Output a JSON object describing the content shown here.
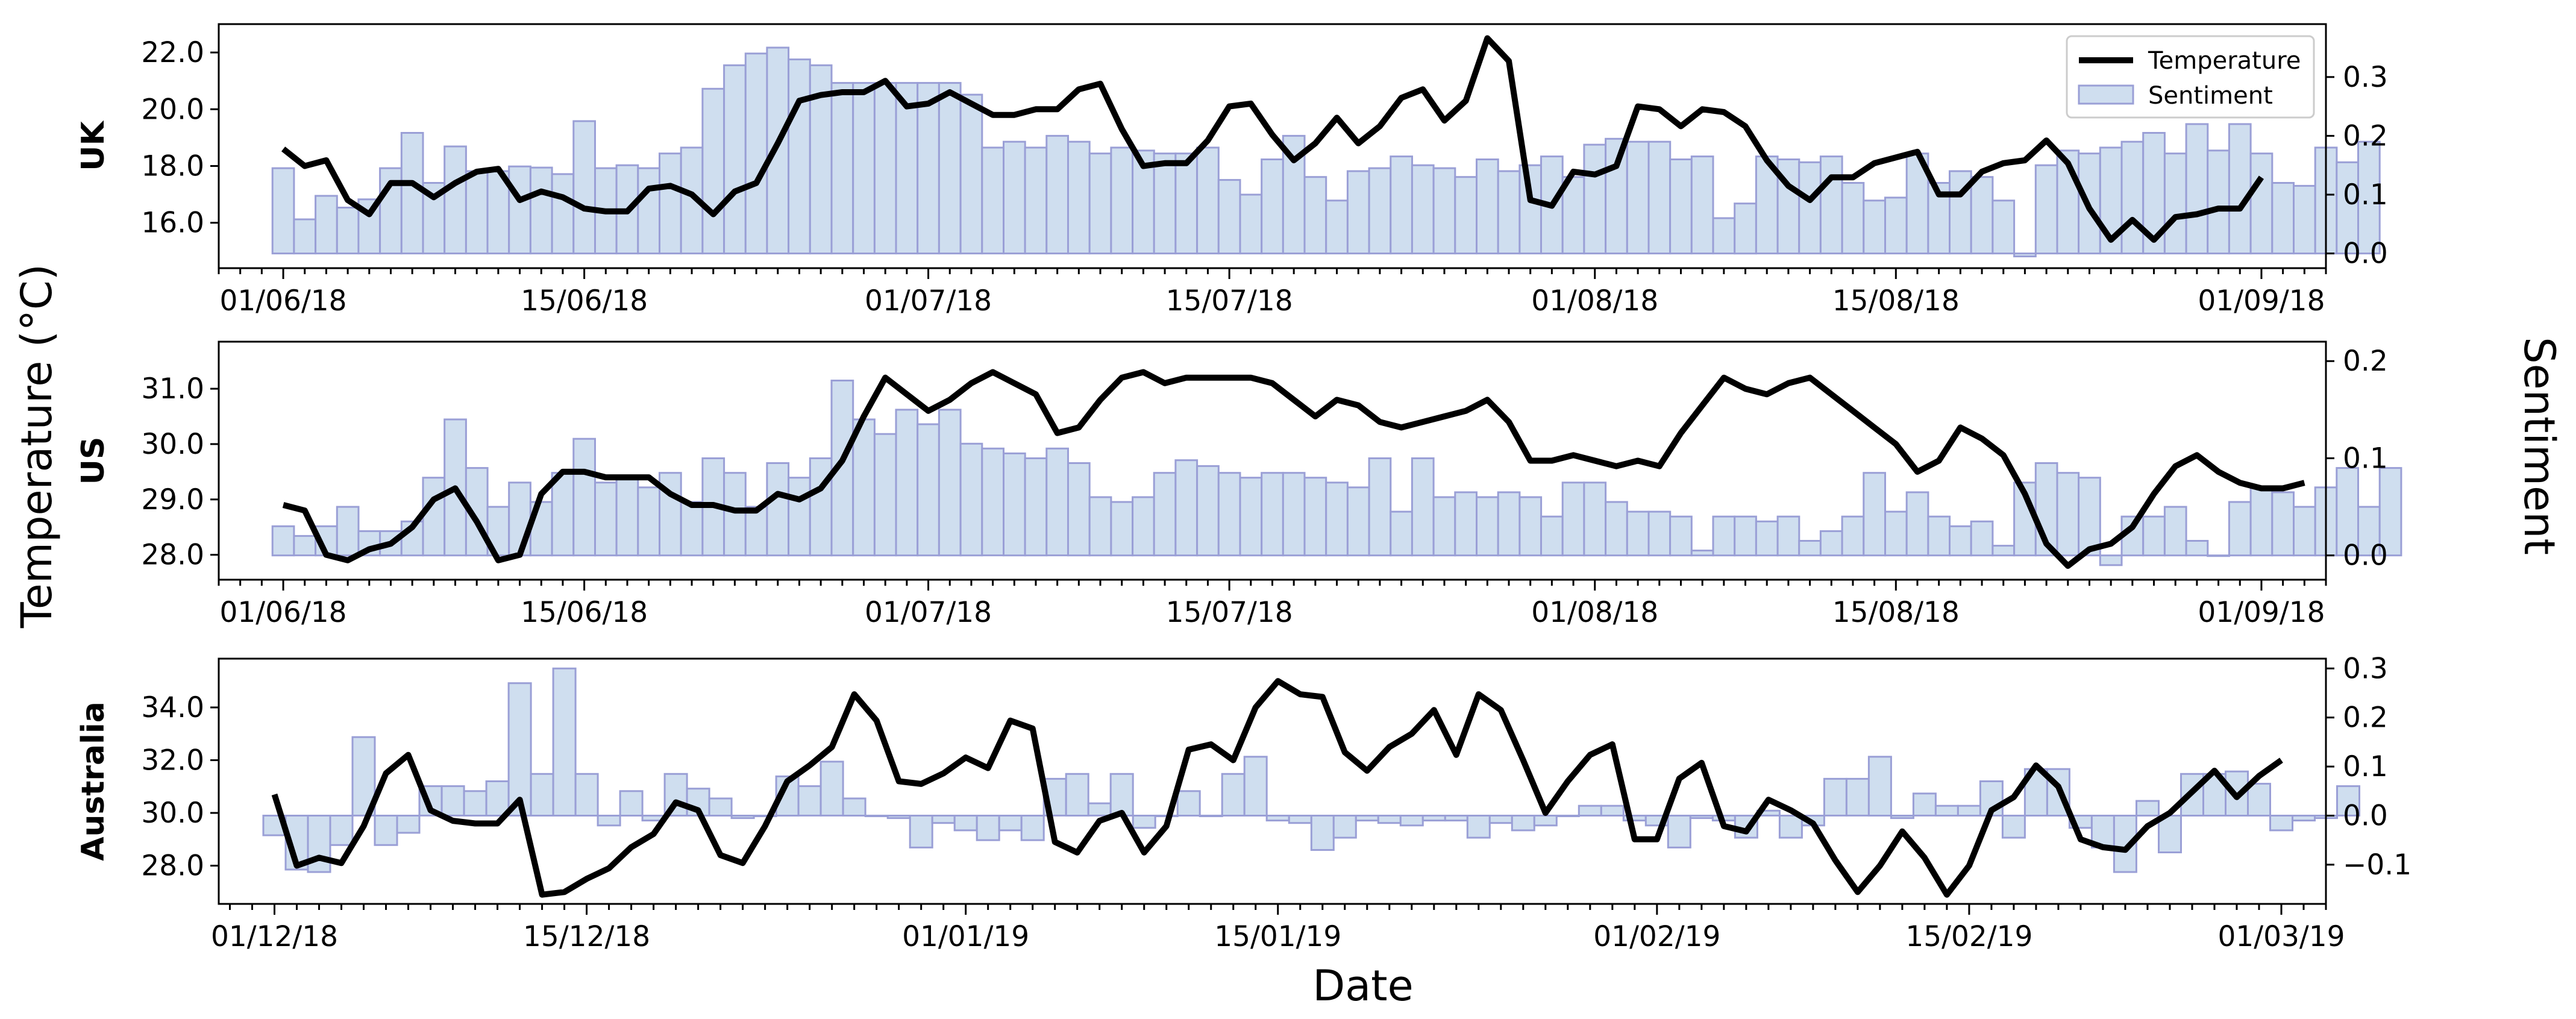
{
  "chart_data": {
    "type": "bar+line",
    "xlabel": "Date",
    "ylabel_left": "Temperature (°C)",
    "ylabel_right": "Sentiment",
    "legend": {
      "placement": "top-right",
      "entries": [
        "Temperature",
        "Sentiment"
      ]
    },
    "colors": {
      "line": "#000000",
      "bar_fill": "#cfdeef",
      "bar_edge": "#9a9fd6"
    },
    "panels": [
      {
        "label": "UK",
        "x_ticks": [
          "01/06/18",
          "15/06/18",
          "01/07/18",
          "15/07/18",
          "01/08/18",
          "15/08/18",
          "01/09/18"
        ],
        "x_range_days": [
          -3,
          95
        ],
        "y_left_ticks": [
          "16.0",
          "18.0",
          "20.0",
          "22.0"
        ],
        "y_left_range": [
          14.4,
          23.0
        ],
        "y_right_ticks": [
          "0.0",
          "0.1",
          "0.2",
          "0.3"
        ],
        "y_right_range": [
          -0.025,
          0.39
        ],
        "temperature": [
          18.6,
          18.0,
          18.2,
          16.8,
          16.3,
          17.4,
          17.4,
          16.9,
          17.4,
          17.8,
          17.9,
          16.8,
          17.1,
          16.9,
          16.5,
          16.4,
          16.4,
          17.2,
          17.3,
          17.0,
          16.3,
          17.1,
          17.4,
          18.8,
          20.3,
          20.5,
          20.6,
          20.6,
          21.0,
          20.1,
          20.2,
          20.6,
          20.2,
          19.8,
          19.8,
          20.0,
          20.0,
          20.7,
          20.9,
          19.3,
          18.0,
          18.1,
          18.1,
          18.9,
          20.1,
          20.2,
          19.1,
          18.2,
          18.8,
          19.7,
          18.8,
          19.4,
          20.4,
          20.7,
          19.6,
          20.3,
          22.5,
          21.7,
          16.8,
          16.6,
          17.8,
          17.7,
          18.0,
          20.1,
          20.0,
          19.4,
          20.0,
          19.9,
          19.4,
          18.2,
          17.3,
          16.8,
          17.6,
          17.6,
          18.1,
          18.3,
          18.5,
          17.0,
          17.0,
          17.8,
          18.1,
          18.2,
          18.9,
          18.1,
          16.5,
          15.4,
          16.1,
          15.4,
          16.2,
          16.3,
          16.5,
          16.5,
          17.6
        ],
        "sentiment": [
          0.145,
          0.058,
          0.098,
          0.078,
          0.092,
          0.145,
          0.205,
          0.12,
          0.182,
          0.14,
          0.14,
          0.148,
          0.146,
          0.135,
          0.225,
          0.145,
          0.15,
          0.145,
          0.17,
          0.18,
          0.28,
          0.32,
          0.34,
          0.35,
          0.33,
          0.32,
          0.29,
          0.29,
          0.29,
          0.29,
          0.29,
          0.29,
          0.27,
          0.18,
          0.19,
          0.18,
          0.2,
          0.19,
          0.17,
          0.18,
          0.175,
          0.17,
          0.17,
          0.18,
          0.125,
          0.1,
          0.16,
          0.2,
          0.13,
          0.09,
          0.14,
          0.145,
          0.165,
          0.15,
          0.145,
          0.13,
          0.16,
          0.14,
          0.15,
          0.165,
          0.13,
          0.185,
          0.195,
          0.19,
          0.19,
          0.16,
          0.165,
          0.06,
          0.085,
          0.165,
          0.16,
          0.155,
          0.165,
          0.12,
          0.09,
          0.095,
          0.17,
          0.12,
          0.14,
          0.13,
          0.09,
          -0.005,
          0.15,
          0.175,
          0.17,
          0.18,
          0.19,
          0.205,
          0.17,
          0.22,
          0.175,
          0.22,
          0.17,
          0.12,
          0.115,
          0.18,
          0.155,
          0.19
        ]
      },
      {
        "label": "US",
        "x_ticks": [
          "01/06/18",
          "15/06/18",
          "01/07/18",
          "15/07/18",
          "01/08/18",
          "15/08/18",
          "01/09/18"
        ],
        "x_range_days": [
          -3,
          95
        ],
        "y_left_ticks": [
          "28.0",
          "29.0",
          "30.0",
          "31.0"
        ],
        "y_left_range": [
          27.55,
          31.85
        ],
        "y_right_ticks": [
          "0.0",
          "0.1",
          "0.2"
        ],
        "y_right_range": [
          -0.025,
          0.22
        ],
        "temperature": [
          28.9,
          28.8,
          28.0,
          27.9,
          28.1,
          28.2,
          28.5,
          29.0,
          29.2,
          28.6,
          27.9,
          28.0,
          29.1,
          29.5,
          29.5,
          29.4,
          29.4,
          29.4,
          29.1,
          28.9,
          28.9,
          28.8,
          28.8,
          29.1,
          29.0,
          29.2,
          29.7,
          30.5,
          31.2,
          30.9,
          30.6,
          30.8,
          31.1,
          31.3,
          31.1,
          30.9,
          30.2,
          30.3,
          30.8,
          31.2,
          31.3,
          31.1,
          31.2,
          31.2,
          31.2,
          31.2,
          31.1,
          30.8,
          30.5,
          30.8,
          30.7,
          30.4,
          30.3,
          30.4,
          30.5,
          30.6,
          30.8,
          30.4,
          29.7,
          29.7,
          29.8,
          29.7,
          29.6,
          29.7,
          29.6,
          30.2,
          30.7,
          31.2,
          31.0,
          30.9,
          31.1,
          31.2,
          30.9,
          30.6,
          30.3,
          30.0,
          29.5,
          29.7,
          30.3,
          30.1,
          29.8,
          29.1,
          28.2,
          27.8,
          28.1,
          28.2,
          28.5,
          29.1,
          29.6,
          29.8,
          29.5,
          29.3,
          29.2,
          29.2,
          29.3
        ],
        "sentiment": [
          0.03,
          0.02,
          0.03,
          0.05,
          0.025,
          0.025,
          0.035,
          0.08,
          0.14,
          0.09,
          0.05,
          0.075,
          0.055,
          0.085,
          0.12,
          0.075,
          0.08,
          0.07,
          0.085,
          0.055,
          0.1,
          0.085,
          0.05,
          0.095,
          0.08,
          0.1,
          0.18,
          0.14,
          0.125,
          0.15,
          0.135,
          0.15,
          0.115,
          0.11,
          0.105,
          0.1,
          0.11,
          0.095,
          0.06,
          0.055,
          0.06,
          0.085,
          0.098,
          0.092,
          0.085,
          0.08,
          0.085,
          0.085,
          0.08,
          0.075,
          0.07,
          0.1,
          0.045,
          0.1,
          0.06,
          0.065,
          0.06,
          0.065,
          0.06,
          0.04,
          0.075,
          0.075,
          0.055,
          0.045,
          0.045,
          0.04,
          0.005,
          0.04,
          0.04,
          0.035,
          0.04,
          0.015,
          0.025,
          0.04,
          0.085,
          0.045,
          0.065,
          0.04,
          0.03,
          0.035,
          0.01,
          0.075,
          0.095,
          0.085,
          0.08,
          -0.01,
          0.04,
          0.04,
          0.05,
          0.015,
          0.0,
          0.055,
          0.07,
          0.065,
          0.05,
          0.07,
          0.09,
          0.05,
          0.09
        ]
      },
      {
        "label": "Australia",
        "x_ticks": [
          "01/12/18",
          "15/12/18",
          "01/01/19",
          "15/01/19",
          "01/02/19",
          "15/02/19",
          "01/03/19"
        ],
        "x_range_days": [
          -2.5,
          92
        ],
        "y_left_ticks": [
          "28.0",
          "30.0",
          "32.0",
          "34.0"
        ],
        "y_left_range": [
          26.55,
          35.85
        ],
        "y_right_ticks": [
          "−0.1",
          "0.0",
          "0.1",
          "0.2",
          "0.3"
        ],
        "y_right_range": [
          -0.18,
          0.32
        ],
        "temperature": [
          30.7,
          28.0,
          28.3,
          28.1,
          29.5,
          31.5,
          32.2,
          30.1,
          29.7,
          29.6,
          29.6,
          30.5,
          26.9,
          27.0,
          27.5,
          27.9,
          28.7,
          29.2,
          30.4,
          30.1,
          28.4,
          28.1,
          29.5,
          31.2,
          31.8,
          32.5,
          34.5,
          33.5,
          31.2,
          31.1,
          31.5,
          32.1,
          31.7,
          33.5,
          33.2,
          28.9,
          28.5,
          29.7,
          30.0,
          28.5,
          29.5,
          32.4,
          32.6,
          32.0,
          34.0,
          35.0,
          34.5,
          34.4,
          32.3,
          31.6,
          32.5,
          33.0,
          33.9,
          32.2,
          34.5,
          33.9,
          32.0,
          30.0,
          31.2,
          32.2,
          32.6,
          29.0,
          29.0,
          31.3,
          31.9,
          29.5,
          29.3,
          30.5,
          30.1,
          29.6,
          28.2,
          27.0,
          28.0,
          29.3,
          28.3,
          26.9,
          28.0,
          30.1,
          30.6,
          31.8,
          31.0,
          29.0,
          28.7,
          28.6,
          29.5,
          30.0,
          30.8,
          31.6,
          30.6,
          31.4,
          32.0
        ],
        "sentiment": [
          -0.04,
          -0.11,
          -0.115,
          -0.06,
          0.16,
          -0.06,
          -0.035,
          0.06,
          0.06,
          0.05,
          0.07,
          0.27,
          0.085,
          0.3,
          0.085,
          -0.02,
          0.05,
          -0.01,
          0.085,
          0.055,
          0.035,
          -0.005,
          0.0,
          0.08,
          0.06,
          0.11,
          0.035,
          0.0,
          -0.005,
          -0.065,
          -0.015,
          -0.03,
          -0.05,
          -0.03,
          -0.05,
          0.075,
          0.085,
          0.025,
          0.085,
          -0.025,
          0.0,
          0.05,
          0.0,
          0.085,
          0.12,
          -0.01,
          -0.015,
          -0.07,
          -0.045,
          -0.01,
          -0.015,
          -0.02,
          -0.01,
          -0.01,
          -0.045,
          -0.015,
          -0.03,
          -0.02,
          0.0,
          0.02,
          0.02,
          -0.01,
          -0.02,
          -0.065,
          -0.005,
          -0.01,
          -0.045,
          0.01,
          -0.045,
          -0.02,
          0.075,
          0.075,
          0.12,
          -0.005,
          0.045,
          0.02,
          0.02,
          0.07,
          -0.045,
          0.095,
          0.095,
          -0.025,
          -0.065,
          -0.115,
          0.03,
          -0.075,
          0.085,
          0.085,
          0.09,
          0.065,
          -0.03,
          -0.01,
          -0.005,
          0.06
        ]
      }
    ]
  }
}
